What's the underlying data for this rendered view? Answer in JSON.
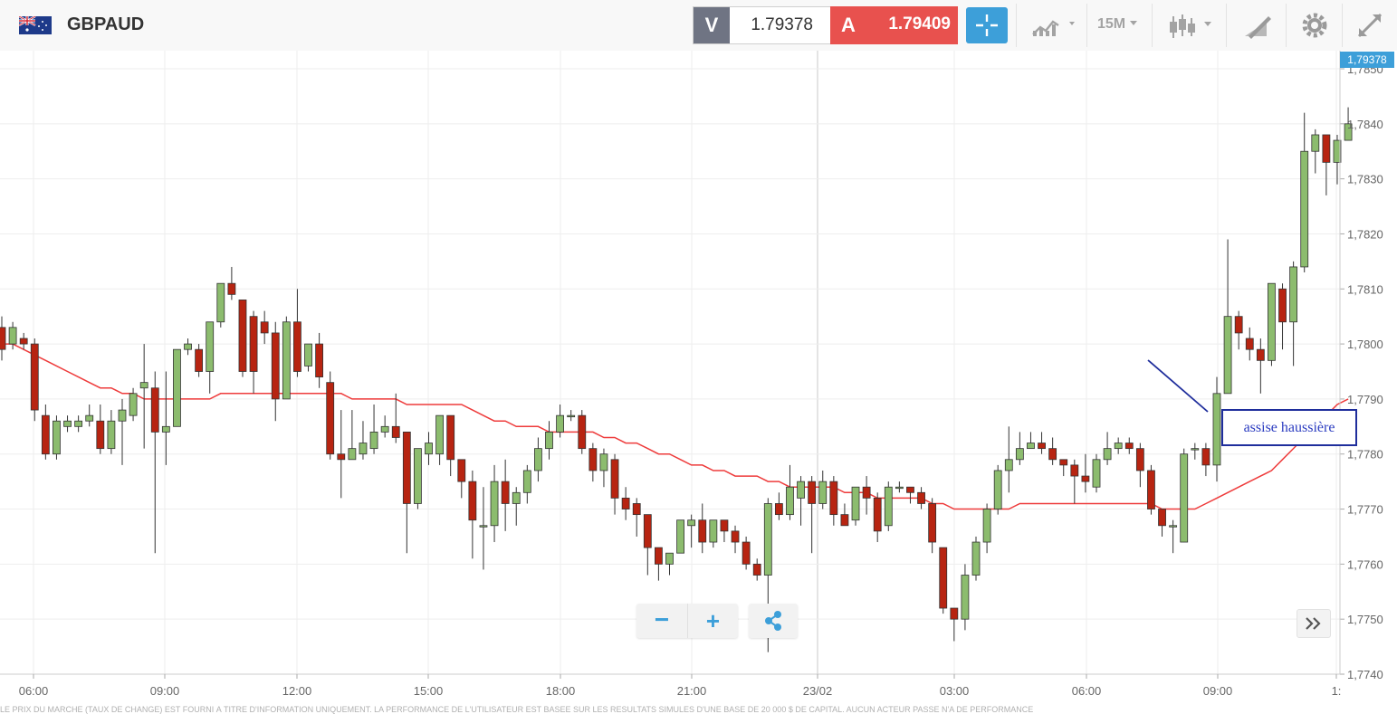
{
  "toolbar": {
    "symbol": "GBPAUD",
    "flag_icon": "gb-au-flag-icon",
    "sell_label": "V",
    "sell_price": "1.79378",
    "buy_label": "A",
    "buy_price": "1.79409",
    "timeframe": "15M",
    "icons": [
      "crosshair-icon",
      "chart-type-icon",
      "candles-icon",
      "draw-tools-icon",
      "gear-icon",
      "expand-icon"
    ],
    "colors": {
      "sell_bg": "#6f7483",
      "buy_bg": "#e8514e",
      "accent": "#3d9fd9"
    }
  },
  "chart_data": {
    "type": "candlestick",
    "x_labels": [
      "06:00",
      "09:00",
      "12:00",
      "15:00",
      "18:00",
      "21:00",
      "23/02",
      "03:00",
      "06:00",
      "09:00",
      "1:"
    ],
    "y_ticks": [
      "1,7850",
      "1,7840",
      "1,7830",
      "1,7820",
      "1,7810",
      "1,7800",
      "1,7790",
      "1,7780",
      "1,7770",
      "1,7760",
      "1,7750",
      "1,7740"
    ],
    "ylim": [
      1.774,
      1.785
    ],
    "current_price_label": "1,79378",
    "grid": true,
    "colors": {
      "up": "#8cbc6e",
      "down": "#b72411",
      "ma": "#ee3b3b",
      "annotation": "#1f2e9c"
    },
    "candles": [
      [
        1.7803,
        1.7799,
        1.7805,
        1.7797
      ],
      [
        1.78,
        1.7803,
        1.7804,
        1.7799
      ],
      [
        1.7801,
        1.78,
        1.7802,
        1.7799
      ],
      [
        1.78,
        1.7788,
        1.7801,
        1.7786
      ],
      [
        1.7787,
        1.778,
        1.7789,
        1.7779
      ],
      [
        1.778,
        1.7786,
        1.7787,
        1.7779
      ],
      [
        1.7785,
        1.7786,
        1.7787,
        1.7784
      ],
      [
        1.7785,
        1.7786,
        1.7787,
        1.7784
      ],
      [
        1.7786,
        1.7787,
        1.7789,
        1.7785
      ],
      [
        1.7786,
        1.7781,
        1.7789,
        1.778
      ],
      [
        1.7781,
        1.7786,
        1.7788,
        1.778
      ],
      [
        1.7786,
        1.7788,
        1.779,
        1.7778
      ],
      [
        1.7787,
        1.7791,
        1.7792,
        1.7786
      ],
      [
        1.7792,
        1.7793,
        1.78,
        1.7781
      ],
      [
        1.7792,
        1.7784,
        1.7795,
        1.7762
      ],
      [
        1.7784,
        1.7785,
        1.7795,
        1.7778
      ],
      [
        1.7785,
        1.7799,
        1.7799,
        1.7785
      ],
      [
        1.7799,
        1.78,
        1.7801,
        1.7798
      ],
      [
        1.7799,
        1.7795,
        1.78,
        1.7794
      ],
      [
        1.7795,
        1.7804,
        1.7804,
        1.7791
      ],
      [
        1.7804,
        1.7811,
        1.7811,
        1.7803
      ],
      [
        1.7811,
        1.7809,
        1.7814,
        1.7808
      ],
      [
        1.7808,
        1.7795,
        1.7808,
        1.7794
      ],
      [
        1.7805,
        1.7795,
        1.7806,
        1.7791
      ],
      [
        1.7804,
        1.7802,
        1.7806,
        1.78
      ],
      [
        1.7802,
        1.779,
        1.7804,
        1.7786
      ],
      [
        1.779,
        1.7804,
        1.7805,
        1.779
      ],
      [
        1.7804,
        1.7795,
        1.781,
        1.7794
      ],
      [
        1.7796,
        1.78,
        1.78,
        1.7795
      ],
      [
        1.78,
        1.7794,
        1.7802,
        1.7792
      ],
      [
        1.7793,
        1.778,
        1.7795,
        1.7779
      ],
      [
        1.778,
        1.7779,
        1.7788,
        1.7772
      ],
      [
        1.7779,
        1.7781,
        1.7788,
        1.7779
      ],
      [
        1.778,
        1.7782,
        1.7786,
        1.7779
      ],
      [
        1.7781,
        1.7784,
        1.7789,
        1.778
      ],
      [
        1.7784,
        1.7785,
        1.7787,
        1.7783
      ],
      [
        1.7785,
        1.7783,
        1.7791,
        1.7782
      ],
      [
        1.7784,
        1.7771,
        1.7784,
        1.7762
      ],
      [
        1.7771,
        1.7781,
        1.7781,
        1.777
      ],
      [
        1.778,
        1.7782,
        1.7784,
        1.7778
      ],
      [
        1.778,
        1.7787,
        1.7787,
        1.7778
      ],
      [
        1.7787,
        1.7779,
        1.7787,
        1.7776
      ],
      [
        1.7779,
        1.7775,
        1.7779,
        1.7772
      ],
      [
        1.7775,
        1.7768,
        1.7777,
        1.7761
      ],
      [
        1.7767,
        1.7767,
        1.7774,
        1.7759
      ],
      [
        1.7767,
        1.7775,
        1.7778,
        1.7764
      ],
      [
        1.7775,
        1.7771,
        1.7779,
        1.7766
      ],
      [
        1.7771,
        1.7773,
        1.7774,
        1.7767
      ],
      [
        1.7773,
        1.7777,
        1.7778,
        1.7771
      ],
      [
        1.7777,
        1.7781,
        1.7783,
        1.7775
      ],
      [
        1.7781,
        1.7784,
        1.7786,
        1.7779
      ],
      [
        1.7784,
        1.7787,
        1.7789,
        1.7783
      ],
      [
        1.7787,
        1.7787,
        1.7788,
        1.7786
      ],
      [
        1.7787,
        1.7781,
        1.7788,
        1.778
      ],
      [
        1.7781,
        1.7777,
        1.7782,
        1.7775
      ],
      [
        1.7777,
        1.778,
        1.7781,
        1.7774
      ],
      [
        1.7779,
        1.7772,
        1.778,
        1.7769
      ],
      [
        1.7772,
        1.777,
        1.7774,
        1.7768
      ],
      [
        1.7771,
        1.7769,
        1.7772,
        1.7765
      ],
      [
        1.7769,
        1.7763,
        1.7769,
        1.7758
      ],
      [
        1.7763,
        1.776,
        1.7763,
        1.7757
      ],
      [
        1.776,
        1.7762,
        1.7762,
        1.7758
      ],
      [
        1.7762,
        1.7768,
        1.7768,
        1.7762
      ],
      [
        1.7767,
        1.7768,
        1.7769,
        1.7763
      ],
      [
        1.7768,
        1.7764,
        1.7771,
        1.7762
      ],
      [
        1.7764,
        1.7768,
        1.7768,
        1.7763
      ],
      [
        1.7768,
        1.7766,
        1.7768,
        1.7764
      ],
      [
        1.7766,
        1.7764,
        1.7767,
        1.7762
      ],
      [
        1.7764,
        1.776,
        1.7765,
        1.7759
      ],
      [
        1.776,
        1.7758,
        1.7761,
        1.7757
      ],
      [
        1.7758,
        1.7771,
        1.7772,
        1.7744
      ],
      [
        1.7771,
        1.7769,
        1.7773,
        1.7768
      ],
      [
        1.7769,
        1.7774,
        1.7778,
        1.7768
      ],
      [
        1.7772,
        1.7775,
        1.7776,
        1.7767
      ],
      [
        1.7775,
        1.7771,
        1.7776,
        1.7762
      ],
      [
        1.7771,
        1.7775,
        1.7777,
        1.777
      ],
      [
        1.7775,
        1.7769,
        1.7776,
        1.7767
      ],
      [
        1.7769,
        1.7767,
        1.7771,
        1.7767
      ],
      [
        1.7768,
        1.7774,
        1.7774,
        1.7767
      ],
      [
        1.7774,
        1.7772,
        1.7776,
        1.7769
      ],
      [
        1.7772,
        1.7766,
        1.7773,
        1.7764
      ],
      [
        1.7767,
        1.7774,
        1.7775,
        1.7766
      ],
      [
        1.7774,
        1.7774,
        1.7775,
        1.7773
      ],
      [
        1.7774,
        1.7773,
        1.7774,
        1.7771
      ],
      [
        1.7773,
        1.7771,
        1.7774,
        1.777
      ],
      [
        1.7771,
        1.7764,
        1.7772,
        1.7762
      ],
      [
        1.7763,
        1.7752,
        1.7763,
        1.7751
      ],
      [
        1.7752,
        1.775,
        1.7752,
        1.7746
      ],
      [
        1.775,
        1.7758,
        1.776,
        1.7748
      ],
      [
        1.7758,
        1.7764,
        1.7765,
        1.7757
      ],
      [
        1.7764,
        1.777,
        1.7771,
        1.7762
      ],
      [
        1.777,
        1.7777,
        1.7778,
        1.7769
      ],
      [
        1.7777,
        1.7779,
        1.7785,
        1.7773
      ],
      [
        1.7779,
        1.7781,
        1.7784,
        1.7778
      ],
      [
        1.7781,
        1.7782,
        1.7784,
        1.7781
      ],
      [
        1.7782,
        1.7781,
        1.7784,
        1.778
      ],
      [
        1.7781,
        1.7779,
        1.7783,
        1.7778
      ],
      [
        1.7779,
        1.7778,
        1.7779,
        1.7776
      ],
      [
        1.7778,
        1.7776,
        1.7779,
        1.7771
      ],
      [
        1.7776,
        1.7775,
        1.778,
        1.7773
      ],
      [
        1.7774,
        1.7779,
        1.778,
        1.7773
      ],
      [
        1.7779,
        1.7781,
        1.7784,
        1.7778
      ],
      [
        1.7781,
        1.7782,
        1.7783,
        1.778
      ],
      [
        1.7782,
        1.7781,
        1.7783,
        1.778
      ],
      [
        1.7781,
        1.7777,
        1.7782,
        1.7774
      ],
      [
        1.7777,
        1.777,
        1.7778,
        1.7769
      ],
      [
        1.777,
        1.7767,
        1.777,
        1.7765
      ],
      [
        1.7767,
        1.7767,
        1.7768,
        1.7762
      ],
      [
        1.7764,
        1.778,
        1.7781,
        1.7764
      ],
      [
        1.7781,
        1.7781,
        1.7782,
        1.7779
      ],
      [
        1.7781,
        1.7778,
        1.7782,
        1.7776
      ],
      [
        1.7778,
        1.7791,
        1.7794,
        1.7775
      ],
      [
        1.7791,
        1.7805,
        1.7819,
        1.7791
      ],
      [
        1.7805,
        1.7802,
        1.7806,
        1.7799
      ],
      [
        1.7801,
        1.7799,
        1.7803,
        1.7797
      ],
      [
        1.7799,
        1.7797,
        1.7801,
        1.7791
      ],
      [
        1.7797,
        1.7811,
        1.7811,
        1.7796
      ],
      [
        1.781,
        1.7804,
        1.7811,
        1.7799
      ],
      [
        1.7804,
        1.7814,
        1.7815,
        1.7796
      ],
      [
        1.7814,
        1.7835,
        1.7842,
        1.7813
      ],
      [
        1.7835,
        1.7838,
        1.7839,
        1.7831
      ],
      [
        1.7838,
        1.7833,
        1.7838,
        1.7827
      ],
      [
        1.7833,
        1.7837,
        1.7838,
        1.7829
      ],
      [
        1.7837,
        1.784,
        1.7843,
        1.7837
      ]
    ],
    "moving_average": [
      1.78,
      1.78,
      1.7799,
      1.7798,
      1.7797,
      1.7796,
      1.7795,
      1.7794,
      1.7793,
      1.7792,
      1.7792,
      1.7791,
      1.7791,
      1.779,
      1.779,
      1.779,
      1.779,
      1.779,
      1.779,
      1.779,
      1.7791,
      1.7791,
      1.7791,
      1.7791,
      1.7791,
      1.7791,
      1.7791,
      1.7791,
      1.7791,
      1.7791,
      1.7791,
      1.7791,
      1.779,
      1.779,
      1.779,
      1.779,
      1.779,
      1.7789,
      1.7789,
      1.7789,
      1.7789,
      1.7789,
      1.7789,
      1.7788,
      1.7787,
      1.7786,
      1.7786,
      1.7785,
      1.7785,
      1.7785,
      1.7784,
      1.7784,
      1.7784,
      1.7784,
      1.7784,
      1.7783,
      1.7783,
      1.7782,
      1.7782,
      1.7781,
      1.778,
      1.778,
      1.7779,
      1.7778,
      1.7778,
      1.7777,
      1.7777,
      1.7776,
      1.7776,
      1.7776,
      1.7775,
      1.7775,
      1.7774,
      1.7774,
      1.7774,
      1.7774,
      1.7774,
      1.7773,
      1.7773,
      1.7773,
      1.7772,
      1.7772,
      1.7772,
      1.7772,
      1.7772,
      1.7771,
      1.7771,
      1.777,
      1.777,
      1.777,
      1.777,
      1.777,
      1.777,
      1.7771,
      1.7771,
      1.7771,
      1.7771,
      1.7771,
      1.7771,
      1.7771,
      1.7771,
      1.7771,
      1.7771,
      1.7771,
      1.7771,
      1.7771,
      1.777,
      1.777,
      1.777,
      1.777,
      1.7771,
      1.7772,
      1.7773,
      1.7774,
      1.7775,
      1.7776,
      1.7777,
      1.7779,
      1.7781,
      1.7783,
      1.7785,
      1.7787,
      1.7789,
      1.779
    ],
    "annotation": "assise haussière"
  },
  "status_line": "LE PRIX DU MARCHÉ (TAUX DE CHANGE) EST FOURNI À TITRE D'INFORMATION UNIQUEMENT. LA PERFORMANCE DE L'UTILISATEUR EST BASÉE SUR LES RÉSULTATS SIMULÉS D'UNE BASE DE 20 000 $ DE CAPITAL. AUCUN ACTEUR PASSÉ N'A DE PERFORMANCE"
}
